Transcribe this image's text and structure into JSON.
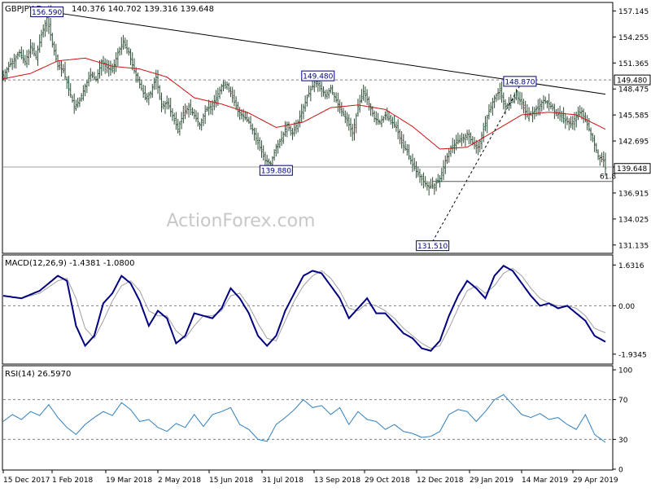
{
  "chart_data": {
    "type": "line",
    "symbol_header": "GBPJPY Daily",
    "ohlc_header": "140.376 140.702 139.316 139.648",
    "watermark": "ActionForex.com",
    "x_tick_labels": [
      "15 Dec 2017",
      "1 Feb 2018",
      "19 Mar 2018",
      "2 May 2018",
      "15 Jun 2018",
      "31 Jul 2018",
      "13 Sep 2018",
      "29 Oct 2018",
      "12 Dec 2018",
      "29 Jan 2019",
      "14 Mar 2019",
      "29 Apr 2019"
    ],
    "price_panel": {
      "y_ticks": [
        "157.145",
        "154.255",
        "151.365",
        "148.475",
        "145.585",
        "142.695",
        "139.805",
        "136.915",
        "134.025",
        "131.135"
      ],
      "ylim": [
        130.3,
        158.0
      ],
      "close_series": [
        [
          0,
          150.0
        ],
        [
          3,
          151.0
        ],
        [
          6,
          151.8
        ],
        [
          9,
          152.5
        ],
        [
          12,
          151.5
        ],
        [
          15,
          153.2
        ],
        [
          18,
          152.0
        ],
        [
          21,
          154.5
        ],
        [
          24,
          156.4
        ],
        [
          27,
          153.5
        ],
        [
          30,
          151.0
        ],
        [
          33,
          150.5
        ],
        [
          36,
          148.5
        ],
        [
          39,
          146.5
        ],
        [
          42,
          147.2
        ],
        [
          45,
          148.8
        ],
        [
          48,
          150.1
        ],
        [
          51,
          149.5
        ],
        [
          54,
          151.5
        ],
        [
          57,
          150.8
        ],
        [
          60,
          150.5
        ],
        [
          63,
          152.5
        ],
        [
          66,
          153.8
        ],
        [
          69,
          152.5
        ],
        [
          72,
          150.5
        ],
        [
          75,
          149.0
        ],
        [
          78,
          147.5
        ],
        [
          81,
          148.0
        ],
        [
          84,
          149.8
        ],
        [
          87,
          146.5
        ],
        [
          90,
          147.0
        ],
        [
          93,
          145.5
        ],
        [
          96,
          144.0
        ],
        [
          99,
          145.8
        ],
        [
          102,
          146.5
        ],
        [
          105,
          145.5
        ],
        [
          108,
          144.5
        ],
        [
          111,
          146.0
        ],
        [
          114,
          146.5
        ],
        [
          117,
          147.5
        ],
        [
          120,
          148.8
        ],
        [
          123,
          149.0
        ],
        [
          126,
          147.5
        ],
        [
          129,
          146.0
        ],
        [
          132,
          145.5
        ],
        [
          135,
          144.8
        ],
        [
          138,
          143.5
        ],
        [
          141,
          142.0
        ],
        [
          144,
          140.5
        ],
        [
          147,
          140.2
        ],
        [
          150,
          142.0
        ],
        [
          153,
          143.0
        ],
        [
          156,
          144.5
        ],
        [
          159,
          143.5
        ],
        [
          162,
          144.8
        ],
        [
          165,
          146.5
        ],
        [
          168,
          148.0
        ],
        [
          171,
          149.2
        ],
        [
          174,
          148.8
        ],
        [
          177,
          147.8
        ],
        [
          180,
          148.5
        ],
        [
          183,
          147.2
        ],
        [
          186,
          146.0
        ],
        [
          189,
          145.0
        ],
        [
          192,
          143.5
        ],
        [
          195,
          146.5
        ],
        [
          198,
          148.2
        ],
        [
          201,
          146.8
        ],
        [
          204,
          145.2
        ],
        [
          207,
          144.8
        ],
        [
          210,
          145.5
        ],
        [
          213,
          145.0
        ],
        [
          216,
          144.2
        ],
        [
          219,
          142.5
        ],
        [
          222,
          141.5
        ],
        [
          225,
          140.0
        ],
        [
          228,
          139.0
        ],
        [
          231,
          138.2
        ],
        [
          234,
          137.5
        ],
        [
          237,
          137.8
        ],
        [
          240,
          138.5
        ],
        [
          243,
          140.5
        ],
        [
          246,
          142.0
        ],
        [
          249,
          142.5
        ],
        [
          252,
          142.8
        ],
        [
          255,
          143.5
        ],
        [
          258,
          142.5
        ],
        [
          261,
          142.0
        ],
        [
          264,
          144.0
        ],
        [
          267,
          146.0
        ],
        [
          270,
          147.5
        ],
        [
          273,
          148.3
        ],
        [
          276,
          146.5
        ],
        [
          279,
          147.0
        ],
        [
          282,
          147.8
        ],
        [
          285,
          146.8
        ],
        [
          288,
          145.5
        ],
        [
          291,
          145.8
        ],
        [
          294,
          146.5
        ],
        [
          297,
          147.2
        ],
        [
          300,
          146.8
        ],
        [
          303,
          146.0
        ],
        [
          306,
          145.5
        ],
        [
          309,
          145.0
        ],
        [
          312,
          144.5
        ],
        [
          315,
          145.5
        ],
        [
          318,
          146.0
        ],
        [
          321,
          144.5
        ],
        [
          324,
          143.0
        ],
        [
          327,
          141.0
        ],
        [
          330,
          140.5
        ],
        [
          331,
          139.65
        ]
      ],
      "sma55": [
        [
          0,
          149.6
        ],
        [
          15,
          150.2
        ],
        [
          30,
          151.6
        ],
        [
          45,
          151.9
        ],
        [
          60,
          151.0
        ],
        [
          75,
          150.7
        ],
        [
          90,
          149.8
        ],
        [
          105,
          147.5
        ],
        [
          120,
          146.8
        ],
        [
          135,
          145.8
        ],
        [
          150,
          144.2
        ],
        [
          165,
          144.8
        ],
        [
          180,
          146.4
        ],
        [
          195,
          146.7
        ],
        [
          210,
          146.2
        ],
        [
          225,
          144.3
        ],
        [
          240,
          141.8
        ],
        [
          255,
          142.0
        ],
        [
          270,
          143.8
        ],
        [
          285,
          145.6
        ],
        [
          300,
          145.9
        ],
        [
          315,
          145.6
        ],
        [
          331,
          144.0
        ]
      ],
      "trendline": {
        "from": [
          24,
          157.1
        ],
        "to": [
          331,
          147.9
        ]
      },
      "support_line_value": 139.805,
      "fib_line_value": 138.2,
      "fib_label": "61.8",
      "resistance_value": 149.48,
      "resistance_label": "149.480",
      "last_price_label": "139.648",
      "dashed_rise": {
        "from": [
          236,
          131.51
        ],
        "to": [
          284,
          148.87
        ]
      },
      "annotations": [
        {
          "text": "156.590",
          "x": 24,
          "y": 156.59
        },
        {
          "text": "149.480",
          "x": 173,
          "y": 149.48
        },
        {
          "text": "148.870",
          "x": 284,
          "y": 148.87
        },
        {
          "text": "139.880",
          "x": 150,
          "y": 139.88
        },
        {
          "text": "131.510",
          "x": 236,
          "y": 131.51
        }
      ]
    },
    "macd_panel": {
      "title": "MACD(12,26,9) -1.4381 -1.0800",
      "y_ticks": [
        "1.6316",
        "0.00",
        "-1.9345"
      ],
      "ylim": [
        -2.3,
        2.0
      ],
      "macd": [
        [
          0,
          0.4
        ],
        [
          10,
          0.3
        ],
        [
          20,
          0.6
        ],
        [
          30,
          1.2
        ],
        [
          35,
          1.0
        ],
        [
          40,
          -0.8
        ],
        [
          45,
          -1.6
        ],
        [
          50,
          -1.2
        ],
        [
          55,
          0.1
        ],
        [
          60,
          0.5
        ],
        [
          65,
          1.2
        ],
        [
          70,
          0.9
        ],
        [
          75,
          0.2
        ],
        [
          80,
          -0.8
        ],
        [
          85,
          -0.2
        ],
        [
          90,
          -0.5
        ],
        [
          95,
          -1.5
        ],
        [
          100,
          -1.2
        ],
        [
          105,
          -0.3
        ],
        [
          110,
          -0.4
        ],
        [
          115,
          -0.5
        ],
        [
          120,
          -0.1
        ],
        [
          125,
          0.7
        ],
        [
          130,
          0.3
        ],
        [
          135,
          -0.3
        ],
        [
          140,
          -1.2
        ],
        [
          145,
          -1.6
        ],
        [
          150,
          -1.2
        ],
        [
          155,
          -0.2
        ],
        [
          160,
          0.5
        ],
        [
          165,
          1.2
        ],
        [
          170,
          1.4
        ],
        [
          175,
          1.3
        ],
        [
          180,
          0.8
        ],
        [
          185,
          0.3
        ],
        [
          190,
          -0.5
        ],
        [
          195,
          -0.1
        ],
        [
          200,
          0.3
        ],
        [
          205,
          -0.3
        ],
        [
          210,
          -0.3
        ],
        [
          215,
          -0.7
        ],
        [
          220,
          -1.1
        ],
        [
          225,
          -1.3
        ],
        [
          230,
          -1.7
        ],
        [
          235,
          -1.8
        ],
        [
          240,
          -1.4
        ],
        [
          245,
          -0.4
        ],
        [
          250,
          0.4
        ],
        [
          255,
          1.0
        ],
        [
          260,
          0.7
        ],
        [
          265,
          0.3
        ],
        [
          270,
          1.2
        ],
        [
          275,
          1.6
        ],
        [
          280,
          1.4
        ],
        [
          285,
          0.9
        ],
        [
          290,
          0.4
        ],
        [
          295,
          0.0
        ],
        [
          300,
          0.1
        ],
        [
          305,
          -0.1
        ],
        [
          310,
          0.0
        ],
        [
          315,
          -0.3
        ],
        [
          320,
          -0.6
        ],
        [
          325,
          -1.2
        ],
        [
          331,
          -1.44
        ]
      ],
      "signal": [
        [
          0,
          0.4
        ],
        [
          10,
          0.3
        ],
        [
          20,
          0.5
        ],
        [
          30,
          1.0
        ],
        [
          35,
          1.1
        ],
        [
          40,
          0.3
        ],
        [
          45,
          -0.9
        ],
        [
          50,
          -1.3
        ],
        [
          55,
          -0.6
        ],
        [
          60,
          0.2
        ],
        [
          65,
          0.8
        ],
        [
          70,
          1.0
        ],
        [
          75,
          0.6
        ],
        [
          80,
          -0.2
        ],
        [
          85,
          -0.4
        ],
        [
          90,
          -0.4
        ],
        [
          95,
          -1.0
        ],
        [
          100,
          -1.3
        ],
        [
          105,
          -0.8
        ],
        [
          110,
          -0.4
        ],
        [
          115,
          -0.4
        ],
        [
          120,
          -0.2
        ],
        [
          125,
          0.4
        ],
        [
          130,
          0.5
        ],
        [
          135,
          0.0
        ],
        [
          140,
          -0.7
        ],
        [
          145,
          -1.3
        ],
        [
          150,
          -1.4
        ],
        [
          155,
          -0.6
        ],
        [
          160,
          0.2
        ],
        [
          165,
          0.8
        ],
        [
          170,
          1.2
        ],
        [
          175,
          1.4
        ],
        [
          180,
          1.1
        ],
        [
          185,
          0.6
        ],
        [
          190,
          -0.1
        ],
        [
          195,
          -0.2
        ],
        [
          200,
          0.1
        ],
        [
          205,
          0.0
        ],
        [
          210,
          -0.2
        ],
        [
          215,
          -0.5
        ],
        [
          220,
          -0.9
        ],
        [
          225,
          -1.2
        ],
        [
          230,
          -1.5
        ],
        [
          235,
          -1.7
        ],
        [
          240,
          -1.6
        ],
        [
          245,
          -0.9
        ],
        [
          250,
          -0.1
        ],
        [
          255,
          0.6
        ],
        [
          260,
          0.8
        ],
        [
          265,
          0.5
        ],
        [
          270,
          0.8
        ],
        [
          275,
          1.3
        ],
        [
          280,
          1.5
        ],
        [
          285,
          1.2
        ],
        [
          290,
          0.7
        ],
        [
          295,
          0.3
        ],
        [
          300,
          0.1
        ],
        [
          305,
          0.0
        ],
        [
          310,
          0.0
        ],
        [
          315,
          -0.1
        ],
        [
          320,
          -0.4
        ],
        [
          325,
          -0.9
        ],
        [
          331,
          -1.08
        ]
      ]
    },
    "rsi_panel": {
      "title": "RSI(14) 26.5970",
      "y_ticks": [
        "100",
        "70",
        "30",
        "0"
      ],
      "ylim": [
        0,
        100
      ],
      "rsi": [
        [
          0,
          48
        ],
        [
          5,
          55
        ],
        [
          10,
          50
        ],
        [
          15,
          58
        ],
        [
          20,
          54
        ],
        [
          25,
          65
        ],
        [
          30,
          52
        ],
        [
          35,
          42
        ],
        [
          40,
          35
        ],
        [
          45,
          45
        ],
        [
          50,
          52
        ],
        [
          55,
          58
        ],
        [
          60,
          54
        ],
        [
          65,
          67
        ],
        [
          70,
          60
        ],
        [
          75,
          48
        ],
        [
          80,
          50
        ],
        [
          85,
          42
        ],
        [
          90,
          38
        ],
        [
          95,
          46
        ],
        [
          100,
          42
        ],
        [
          105,
          55
        ],
        [
          110,
          43
        ],
        [
          115,
          55
        ],
        [
          120,
          58
        ],
        [
          125,
          62
        ],
        [
          130,
          45
        ],
        [
          135,
          40
        ],
        [
          140,
          30
        ],
        [
          145,
          28
        ],
        [
          150,
          45
        ],
        [
          155,
          52
        ],
        [
          160,
          60
        ],
        [
          165,
          70
        ],
        [
          170,
          62
        ],
        [
          175,
          64
        ],
        [
          180,
          55
        ],
        [
          185,
          62
        ],
        [
          190,
          45
        ],
        [
          195,
          58
        ],
        [
          200,
          50
        ],
        [
          205,
          48
        ],
        [
          210,
          40
        ],
        [
          215,
          45
        ],
        [
          220,
          38
        ],
        [
          225,
          36
        ],
        [
          230,
          32
        ],
        [
          235,
          33
        ],
        [
          240,
          38
        ],
        [
          245,
          55
        ],
        [
          250,
          60
        ],
        [
          255,
          58
        ],
        [
          260,
          48
        ],
        [
          265,
          58
        ],
        [
          270,
          70
        ],
        [
          275,
          75
        ],
        [
          280,
          65
        ],
        [
          285,
          55
        ],
        [
          290,
          52
        ],
        [
          295,
          56
        ],
        [
          300,
          50
        ],
        [
          305,
          52
        ],
        [
          310,
          45
        ],
        [
          315,
          40
        ],
        [
          320,
          55
        ],
        [
          325,
          35
        ],
        [
          331,
          27
        ]
      ]
    },
    "colors": {
      "price": "#2e4e36",
      "sma": "#cc1111",
      "trendline": "#000000",
      "macd": "#000080",
      "signal": "#a0a0a0",
      "rsi": "#2f7fbf",
      "annotation_border": "#000080",
      "grid": "#808080"
    }
  }
}
